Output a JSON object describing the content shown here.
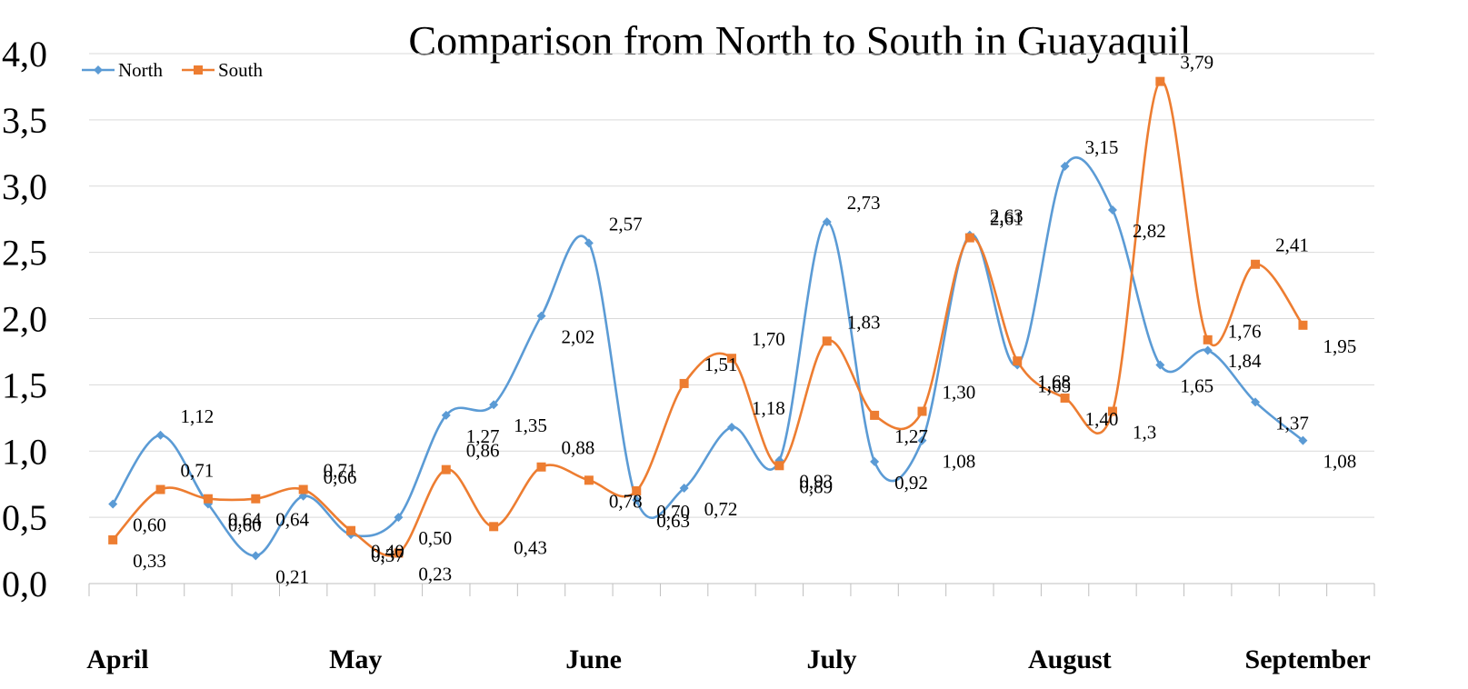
{
  "chart_data": {
    "type": "line",
    "title": "Comparison from North to South in Guayaquil",
    "ylim": [
      0,
      4
    ],
    "y_ticks": [
      "0,0",
      "0,5",
      "1,0",
      "1,5",
      "2,0",
      "2,5",
      "3,0",
      "3,5",
      "4,0"
    ],
    "months": [
      "April",
      "May",
      "June",
      "July",
      "August",
      "September"
    ],
    "grid": true,
    "legend_position": "top-left",
    "smooth": true,
    "series": [
      {
        "name": "North",
        "color": "#5b9bd5",
        "marker": "diamond",
        "values": [
          0.6,
          1.12,
          0.6,
          0.21,
          0.66,
          0.37,
          0.5,
          1.27,
          1.35,
          2.02,
          2.57,
          0.63,
          0.72,
          1.18,
          0.93,
          2.73,
          0.92,
          1.08,
          2.63,
          1.65,
          3.15,
          2.82,
          1.65,
          1.76,
          1.37,
          1.08
        ],
        "labels": [
          "0,60",
          "1,12",
          "0,60",
          "0,21",
          "0,66",
          "0,37",
          "0,50",
          "1,27",
          "1,35",
          "2,02",
          "2,57",
          "0,63",
          "0,72",
          "1,18",
          "0,93",
          "2,73",
          "0,92",
          "1,08",
          "2,63",
          "1,65",
          "3,15",
          "2,82",
          "1,65",
          "1,76",
          "1,37",
          "1,08"
        ]
      },
      {
        "name": "South",
        "color": "#ed7d31",
        "marker": "square",
        "values": [
          0.33,
          0.71,
          0.64,
          0.64,
          0.71,
          0.4,
          0.23,
          0.86,
          0.43,
          0.88,
          0.78,
          0.7,
          1.51,
          1.7,
          0.89,
          1.83,
          1.27,
          1.3,
          2.61,
          1.68,
          1.4,
          1.3,
          3.79,
          1.84,
          2.41,
          1.95
        ],
        "labels": [
          "0,33",
          "0,71",
          "0,64",
          "0,64",
          "0,71",
          "0,40",
          "0,23",
          "0,86",
          "0,43",
          "0,88",
          "0,78",
          "0,70",
          "1,51",
          "1,70",
          "0,89",
          "1,83",
          "1,27",
          "1,30",
          "2,61",
          "1,68",
          "1,40",
          "1,3",
          "3,79",
          "1,84",
          "2,41",
          "1,95"
        ]
      }
    ]
  }
}
